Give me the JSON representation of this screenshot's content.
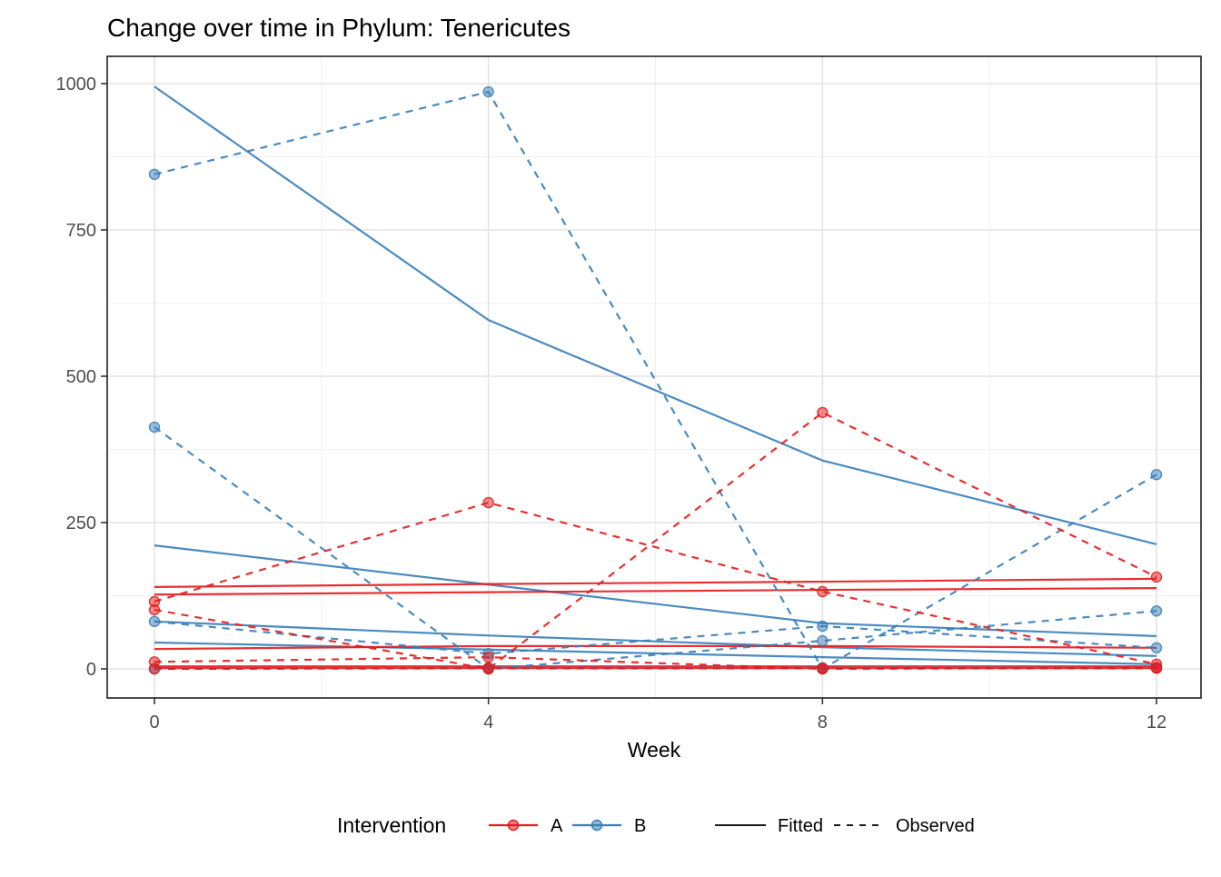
{
  "title": "Change over time in Phylum: Tenericutes",
  "chart_data": {
    "type": "line",
    "title": "Change over time in Phylum: Tenericutes",
    "xlabel": "Week",
    "ylabel": "",
    "xlim": [
      0,
      12
    ],
    "ylim": [
      0,
      1000
    ],
    "x_ticks": [
      0,
      4,
      8,
      12
    ],
    "y_ticks": [
      0,
      250,
      500,
      750,
      1000
    ],
    "x_minor": [
      2,
      6,
      10
    ],
    "y_minor": [
      125,
      375,
      625,
      875
    ],
    "grid": "major+minor",
    "legend_position": "bottom",
    "weeks": [
      0,
      4,
      8,
      12
    ],
    "colors": {
      "A": "#E41A1C",
      "B": "#377EB8"
    },
    "legend": {
      "title": "Intervention",
      "groups": [
        {
          "label": "A",
          "color": "#E41A1C"
        },
        {
          "label": "B",
          "color": "#377EB8"
        }
      ],
      "linetypes": [
        {
          "label": "Fitted",
          "dash": "solid"
        },
        {
          "label": "Observed",
          "dash": "dashed"
        }
      ]
    },
    "series": [
      {
        "id": "B1-fitted",
        "group": "B",
        "linetype": "fitted",
        "values": [
          995,
          596,
          356,
          213
        ]
      },
      {
        "id": "B2-fitted",
        "group": "B",
        "linetype": "fitted",
        "values": [
          211,
          144,
          78,
          56
        ]
      },
      {
        "id": "B3-fitted",
        "group": "B",
        "linetype": "fitted",
        "values": [
          81,
          57,
          37,
          22
        ]
      },
      {
        "id": "B4-fitted",
        "group": "B",
        "linetype": "fitted",
        "values": [
          45,
          33,
          20,
          8
        ]
      },
      {
        "id": "A1-fitted",
        "group": "A",
        "linetype": "fitted",
        "values": [
          140,
          145,
          149,
          154
        ]
      },
      {
        "id": "A2-fitted",
        "group": "A",
        "linetype": "fitted",
        "values": [
          127,
          131,
          135,
          138
        ]
      },
      {
        "id": "A3-fitted",
        "group": "A",
        "linetype": "fitted",
        "values": [
          34,
          39,
          39,
          36
        ]
      },
      {
        "id": "A4-fitted",
        "group": "A",
        "linetype": "fitted",
        "values": [
          3,
          3,
          3,
          3
        ],
        "thick": true
      },
      {
        "id": "B1-observed",
        "group": "B",
        "linetype": "observed",
        "values": [
          845,
          986,
          0,
          332
        ]
      },
      {
        "id": "B2-observed",
        "group": "B",
        "linetype": "observed",
        "values": [
          413,
          0,
          48,
          99
        ]
      },
      {
        "id": "B3-observed",
        "group": "B",
        "linetype": "observed",
        "values": [
          81,
          26,
          73,
          36
        ]
      },
      {
        "id": "B4-observed",
        "group": "B",
        "linetype": "observed",
        "values": [
          0,
          2,
          2,
          2
        ]
      },
      {
        "id": "A1-observed",
        "group": "A",
        "linetype": "observed",
        "values": [
          115,
          284,
          132,
          8
        ]
      },
      {
        "id": "A2-observed",
        "group": "A",
        "linetype": "observed",
        "values": [
          101,
          0,
          438,
          157
        ]
      },
      {
        "id": "A3-observed",
        "group": "A",
        "linetype": "observed",
        "values": [
          12,
          20,
          0,
          2
        ]
      },
      {
        "id": "A4-observed",
        "group": "A",
        "linetype": "observed",
        "values": [
          0,
          1,
          1,
          1
        ]
      }
    ]
  }
}
